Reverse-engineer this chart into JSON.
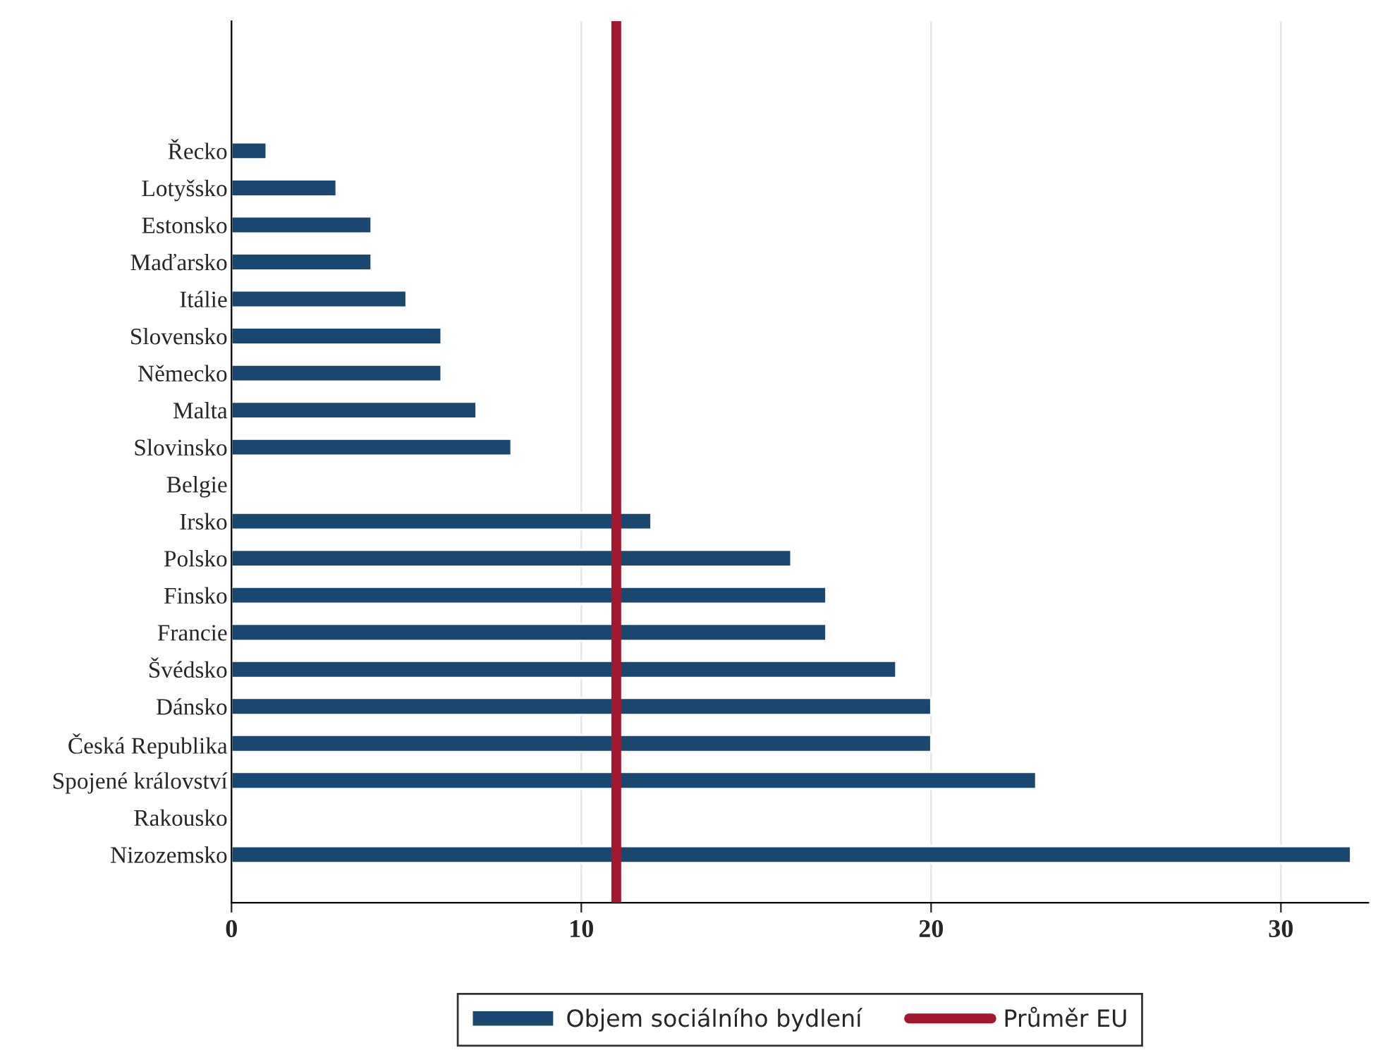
{
  "chart_data": {
    "type": "bar",
    "orientation": "horizontal",
    "categories": [
      "Řecko",
      "Lotyšsko",
      "Estonsko",
      "Maďarsko",
      "Itálie",
      "Slovensko",
      "Německo",
      "Malta",
      "Slovinsko",
      "Belgie",
      "Irsko",
      "Polsko",
      "Finsko",
      "Francie",
      "Švédsko",
      "Dánsko",
      "Česká Republika",
      "Spojené království",
      "Rakousko",
      "Nizozemsko"
    ],
    "series": [
      {
        "name": "Objem sociálního bydlení",
        "color": "#1a476f",
        "values": [
          1,
          3,
          4,
          4,
          5,
          6,
          6,
          7,
          8,
          null,
          12,
          16,
          17,
          17,
          19,
          20,
          20,
          23,
          null,
          32
        ]
      }
    ],
    "ref_lines": [
      {
        "axis": "x",
        "value": 11,
        "label": "Průměr EU",
        "color": "#a3182f"
      }
    ],
    "xlim": [
      0,
      32.5
    ],
    "xticks": [
      0,
      10,
      20,
      30
    ],
    "grid": "x",
    "legend": "bottom"
  }
}
